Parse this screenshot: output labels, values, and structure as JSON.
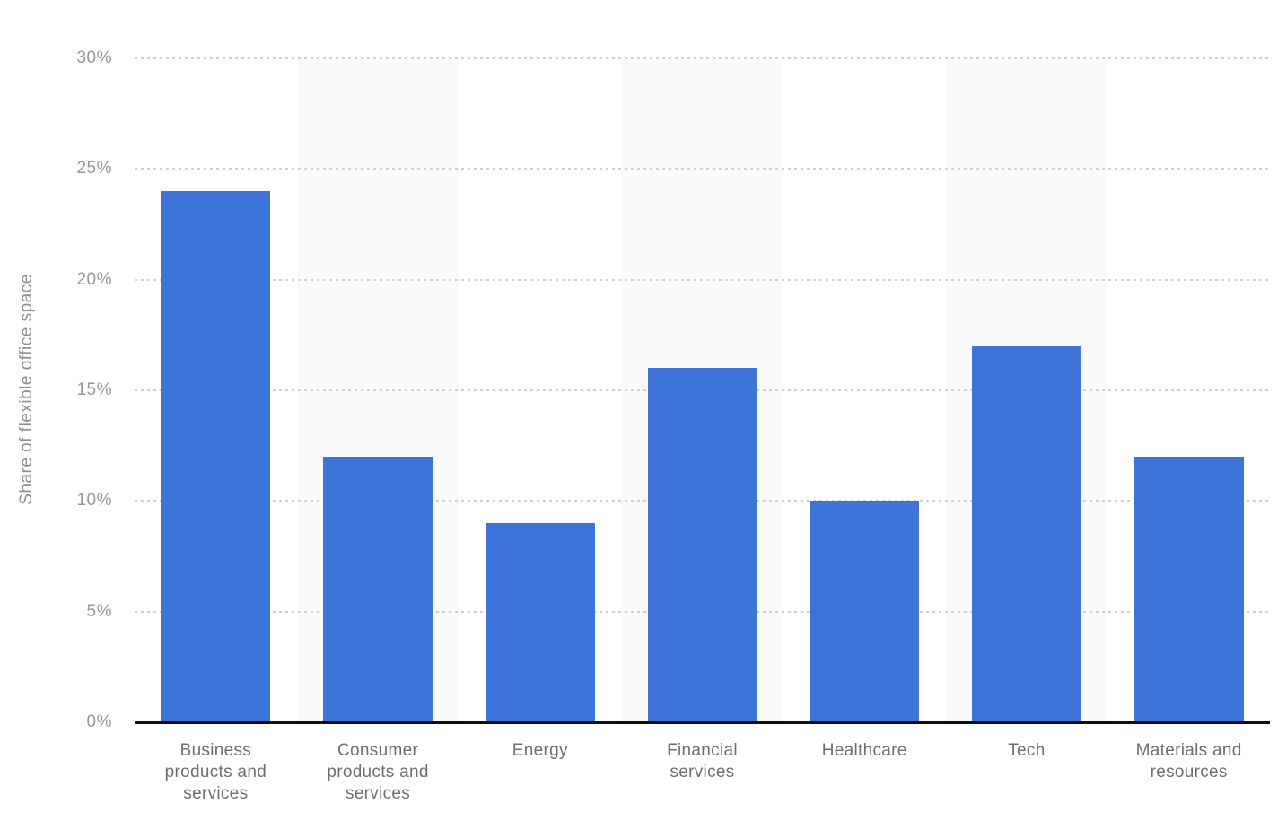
{
  "chart_data": {
    "type": "bar",
    "title": "",
    "xlabel": "",
    "ylabel": "Share of flexible office space",
    "categories": [
      "Business products and services",
      "Consumer products and services",
      "Energy",
      "Financial services",
      "Healthcare",
      "Tech",
      "Materials and resources"
    ],
    "values": [
      24,
      12,
      9,
      16,
      10,
      17,
      12
    ],
    "value_unit": "%",
    "ylim": [
      0,
      30
    ],
    "ytick_step": 5,
    "ytick_labels": [
      "0%",
      "5%",
      "10%",
      "15%",
      "20%",
      "25%",
      "30%"
    ],
    "grid": "horizontal-dotted",
    "legend_position": "none",
    "colors": {
      "bar": "#3e73d7",
      "column_stripe": "#fafafa",
      "gridline": "#cfcfcf",
      "tick_text": "#979797",
      "category_text": "#6e6e6e",
      "axis_line": "#0f0f0f",
      "background": "#ffffff"
    }
  }
}
